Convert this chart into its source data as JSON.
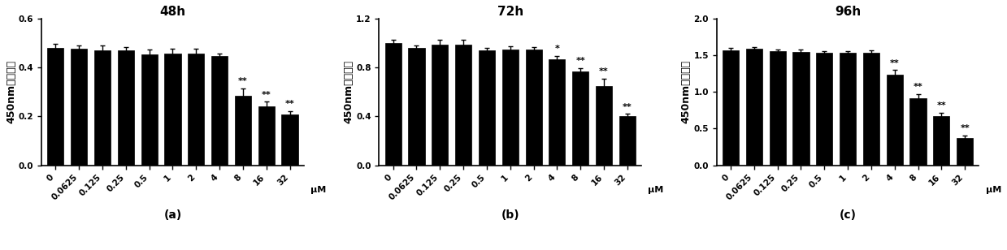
{
  "panels": [
    {
      "title": "48h",
      "label": "(a)",
      "ylabel": "450nm处吸光度",
      "ylim": [
        0,
        0.6
      ],
      "yticks": [
        0.0,
        0.2,
        0.4,
        0.6
      ],
      "categories": [
        "0",
        "0.0625",
        "0.125",
        "0.25",
        "0.5",
        "1",
        "2",
        "4",
        "8",
        "16",
        "32"
      ],
      "values": [
        0.48,
        0.477,
        0.472,
        0.47,
        0.455,
        0.458,
        0.457,
        0.447,
        0.285,
        0.24,
        0.207
      ],
      "errors": [
        0.018,
        0.015,
        0.018,
        0.015,
        0.02,
        0.018,
        0.022,
        0.012,
        0.03,
        0.02,
        0.015
      ],
      "sig": [
        "",
        "",
        "",
        "",
        "",
        "",
        "",
        "",
        "**",
        "**",
        "**"
      ]
    },
    {
      "title": "72h",
      "label": "(b)",
      "ylabel": "450nm处吸光度",
      "ylim": [
        0,
        1.2
      ],
      "yticks": [
        0.0,
        0.4,
        0.8,
        1.2
      ],
      "categories": [
        "0",
        "0.0625",
        "0.125",
        "0.25",
        "0.5",
        "1",
        "2",
        "4",
        "8",
        "16",
        "32"
      ],
      "values": [
        1.0,
        0.96,
        0.985,
        0.99,
        0.94,
        0.95,
        0.95,
        0.87,
        0.77,
        0.65,
        0.4
      ],
      "errors": [
        0.03,
        0.02,
        0.04,
        0.04,
        0.02,
        0.025,
        0.02,
        0.025,
        0.025,
        0.06,
        0.02
      ],
      "sig": [
        "",
        "",
        "",
        "",
        "",
        "",
        "",
        "*",
        "**",
        "**",
        "**"
      ]
    },
    {
      "title": "96h",
      "label": "(c)",
      "ylabel": "450nm处吸光度",
      "ylim": [
        0,
        2.0
      ],
      "yticks": [
        0.0,
        0.5,
        1.0,
        1.5,
        2.0
      ],
      "categories": [
        "0",
        "0.0625",
        "0.125",
        "0.25",
        "0.5",
        "1",
        "2",
        "4",
        "8",
        "16",
        "32"
      ],
      "values": [
        1.57,
        1.59,
        1.56,
        1.545,
        1.535,
        1.54,
        1.54,
        1.24,
        0.92,
        0.67,
        0.375
      ],
      "errors": [
        0.03,
        0.025,
        0.025,
        0.03,
        0.025,
        0.02,
        0.03,
        0.06,
        0.05,
        0.045,
        0.03
      ],
      "sig": [
        "",
        "",
        "",
        "",
        "",
        "",
        "",
        "**",
        "**",
        "**",
        "**"
      ]
    }
  ],
  "bar_color": "#000000",
  "bar_edge_color": "#000000",
  "error_color": "#000000",
  "xlabel_unit": "μM",
  "title_fontsize": 11,
  "ylabel_fontsize": 9,
  "tick_fontsize": 7.5,
  "sig_fontsize": 8,
  "label_fontsize": 10
}
